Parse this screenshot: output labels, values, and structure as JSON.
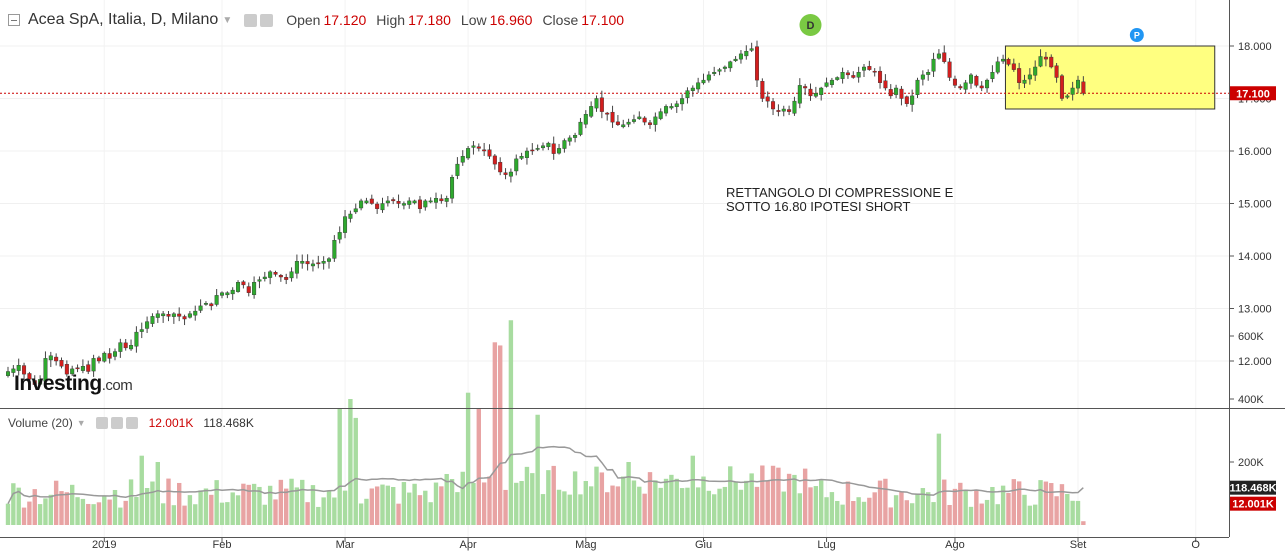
{
  "header": {
    "title": "Acea SpA, Italia, D, Milano",
    "open_label": "Open",
    "open": "17.120",
    "high_label": "High",
    "high": "17.180",
    "low_label": "Low",
    "low": "16.960",
    "close_label": "Close",
    "close": "17.100"
  },
  "volume_header": {
    "label": "Volume (20)",
    "current": "12.001K",
    "average": "118.468K"
  },
  "logo": {
    "main": "Investing",
    "suffix": ".com"
  },
  "annotation": "RETTANGOLO DI COMPRESSIONE E\nSOTTO 16.80 IPOTESI SHORT",
  "markers": [
    {
      "label": "D",
      "color": "#7ac943"
    },
    {
      "label": "P",
      "color": "#2196f3"
    }
  ],
  "colors": {
    "up": "#2ea82e",
    "down": "#d21e1e",
    "vol_up": "#a8dca0",
    "vol_down": "#e8a3a3",
    "ma": "#999999",
    "rect_fill": "#ffff80",
    "rect_stroke": "#333333",
    "price_line": "#cc0000"
  },
  "chart_data": [
    {
      "type": "candlestick",
      "price_axis": {
        "ticks": [
          12,
          13,
          14,
          15,
          16,
          17,
          18
        ],
        "tick_labels": [
          "12.000",
          "13.000",
          "14.000",
          "15.000",
          "16.000",
          "17.000",
          "18.000"
        ],
        "range": [
          11.5,
          18.4
        ]
      },
      "x_labels": [
        "2019",
        "Feb",
        "Mar",
        "Apr",
        "Mag",
        "Giu",
        "Lug",
        "Ago",
        "Set",
        "O"
      ],
      "last_price": 17.1,
      "last_price_label": "17.100",
      "rectangle": {
        "from_bar": 187,
        "to_bar": 225,
        "low": 16.8,
        "high": 18.0
      },
      "closes": [
        11.8,
        11.85,
        11.92,
        11.75,
        11.65,
        11.55,
        11.65,
        12.05,
        12.1,
        12.0,
        11.9,
        11.75,
        11.85,
        11.85,
        11.9,
        11.8,
        12.05,
        12.0,
        12.15,
        12.05,
        12.18,
        12.35,
        12.25,
        12.3,
        12.55,
        12.6,
        12.75,
        12.85,
        12.9,
        12.9,
        12.85,
        12.9,
        12.85,
        12.8,
        12.9,
        12.95,
        13.05,
        13.1,
        13.05,
        13.25,
        13.3,
        13.3,
        13.35,
        13.5,
        13.45,
        13.3,
        13.5,
        13.55,
        13.6,
        13.7,
        13.65,
        13.6,
        13.55,
        13.7,
        13.9,
        13.9,
        13.85,
        13.85,
        13.85,
        13.9,
        13.95,
        14.3,
        14.45,
        14.75,
        14.8,
        14.9,
        15.05,
        15.05,
        15.0,
        14.9,
        15.0,
        15.05,
        15.05,
        15.0,
        15.0,
        15.05,
        15.05,
        14.9,
        15.05,
        15.05,
        15.1,
        15.05,
        15.1,
        15.5,
        15.75,
        15.9,
        16.05,
        16.1,
        16.05,
        16.0,
        15.9,
        15.75,
        15.6,
        15.55,
        15.6,
        15.85,
        15.9,
        16.0,
        16.0,
        16.05,
        16.1,
        16.15,
        15.95,
        16.05,
        16.2,
        16.25,
        16.3,
        16.55,
        16.7,
        16.85,
        17.0,
        16.75,
        16.7,
        16.55,
        16.5,
        16.5,
        16.55,
        16.6,
        16.65,
        16.55,
        16.5,
        16.65,
        16.75,
        16.85,
        16.85,
        16.9,
        17.0,
        17.15,
        17.2,
        17.3,
        17.35,
        17.45,
        17.5,
        17.55,
        17.6,
        17.7,
        17.75,
        17.85,
        17.9,
        17.95,
        17.35,
        17.0,
        16.95,
        16.8,
        16.75,
        16.8,
        16.75,
        16.95,
        17.25,
        17.2,
        17.05,
        17.1,
        17.2,
        17.3,
        17.35,
        17.4,
        17.5,
        17.45,
        17.4,
        17.5,
        17.6,
        17.55,
        17.5,
        17.3,
        17.2,
        17.05,
        17.2,
        17.0,
        16.9,
        17.05,
        17.35,
        17.45,
        17.5,
        17.75,
        17.85,
        17.7,
        17.4,
        17.25,
        17.2,
        17.3,
        17.45,
        17.25,
        17.2,
        17.35,
        17.5,
        17.7,
        17.75,
        17.65,
        17.55,
        17.3,
        17.35,
        17.45,
        17.6,
        17.8,
        17.75,
        17.6,
        17.4,
        17.0,
        17.05,
        17.2,
        17.35,
        17.1
      ]
    },
    {
      "type": "bar",
      "series_name": "Volume (20)",
      "y_axis": {
        "ticks": [
          200000,
          400000,
          600000
        ],
        "tick_labels": [
          "200K",
          "400K",
          "600K"
        ],
        "range": [
          0,
          720000
        ]
      },
      "current": 12001,
      "current_label": "12.001K",
      "average": 118468,
      "average_label": "118.468K",
      "average_window": 20
    }
  ]
}
